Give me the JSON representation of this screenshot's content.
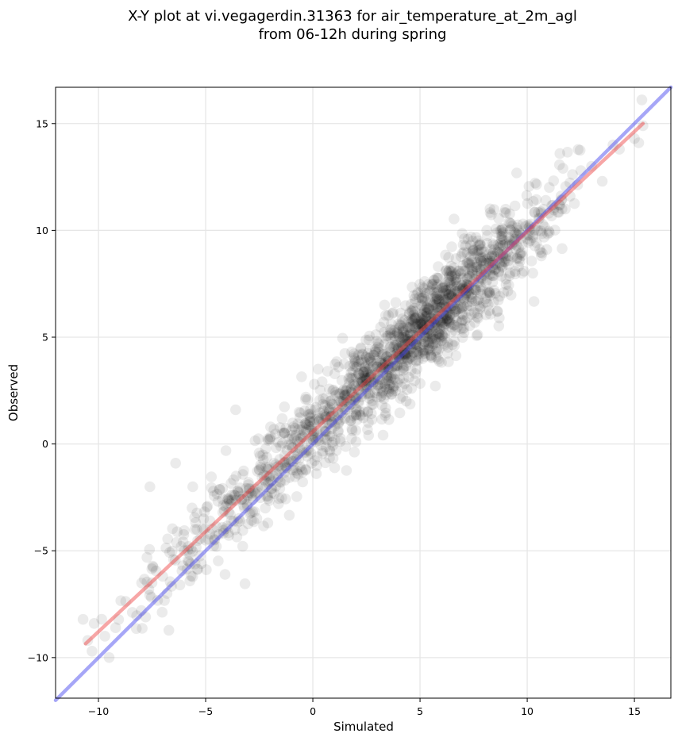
{
  "chart_data": {
    "type": "scatter",
    "title": "X-Y plot at vi.vegagerdin.31363 for air_temperature_at_2m_agl",
    "subtitle": "from 06-12h during spring",
    "xlabel": "Simulated",
    "ylabel": "Observed",
    "xlim": [
      -12,
      16.7
    ],
    "ylim": [
      -11.9,
      16.7
    ],
    "xticks": [
      -10,
      -5,
      0,
      5,
      10,
      15
    ],
    "yticks": [
      -10,
      -5,
      0,
      5,
      10,
      15
    ],
    "xtick_labels": [
      "−10",
      "−5",
      "0",
      "5",
      "10",
      "15"
    ],
    "ytick_labels": [
      "−10",
      "−5",
      "0",
      "5",
      "10",
      "15"
    ],
    "grid": true,
    "legend": "none",
    "point_color": "#000000",
    "point_opacity": 0.08,
    "sample_points": {
      "x": [
        -10.5,
        -10.3,
        -10.2,
        -9.7,
        -9.5,
        -9.2,
        -8.0,
        -7.8,
        -7.5,
        -7.0,
        -6.8,
        -6.5,
        -6.2,
        -6.0,
        -5.8,
        -5.5,
        -5.2,
        -5.0,
        -4.8,
        -4.5,
        -4.2,
        -4.0,
        -3.8,
        -3.5,
        -3.2,
        -3.0,
        -2.8,
        -2.5,
        -2.2,
        -2.0,
        -1.8,
        -1.5,
        -1.2,
        -1.0,
        -0.8,
        -0.5,
        -0.2,
        0.0,
        0.3,
        0.5,
        0.8,
        1.0,
        1.3,
        1.5,
        1.8,
        2.0,
        2.3,
        2.5,
        2.8,
        3.0,
        3.3,
        3.5,
        3.8,
        4.0,
        4.3,
        4.5,
        4.8,
        5.0,
        5.3,
        5.5,
        5.8,
        6.0,
        6.3,
        6.5,
        6.8,
        7.0,
        7.3,
        7.5,
        7.8,
        8.0,
        8.3,
        8.5,
        8.8,
        9.0,
        9.3,
        9.5,
        9.8,
        10.0,
        10.5,
        11.0,
        11.5,
        12.0,
        12.5,
        13.0,
        13.5,
        14.0,
        14.3,
        15.0,
        15.2,
        15.4,
        -7.6,
        -6.4,
        -5.6,
        -3.6,
        -1.6,
        1.2,
        2.6,
        4.6,
        6.6,
        8.6
      ],
      "y": [
        -9.2,
        -9.7,
        -8.4,
        -9.0,
        -10.0,
        -8.6,
        -7.8,
        -8.1,
        -6.5,
        -6.2,
        -7.0,
        -5.4,
        -6.6,
        -5.0,
        -4.8,
        -4.0,
        -5.6,
        -4.5,
        -3.6,
        -4.8,
        -3.2,
        -2.8,
        -3.6,
        -2.2,
        -3.0,
        -1.8,
        -2.6,
        -1.2,
        -2.0,
        -1.5,
        -0.9,
        -1.8,
        -0.3,
        -0.8,
        0.4,
        -0.3,
        0.9,
        0.2,
        1.1,
        0.6,
        1.7,
        1.3,
        2.0,
        1.6,
        2.6,
        2.1,
        3.0,
        2.6,
        3.6,
        3.1,
        4.2,
        3.6,
        4.6,
        4.1,
        5.3,
        4.8,
        5.9,
        5.2,
        6.4,
        5.9,
        7.1,
        6.4,
        7.6,
        6.9,
        8.1,
        7.3,
        8.2,
        7.6,
        8.7,
        7.9,
        9.1,
        8.4,
        9.6,
        8.8,
        10.2,
        9.3,
        10.3,
        9.6,
        10.0,
        10.8,
        11.2,
        11.6,
        12.8,
        13.0,
        12.3,
        14.0,
        13.8,
        14.3,
        14.1,
        14.9,
        -2.0,
        -0.9,
        -2.0,
        1.6,
        -2.8,
        3.6,
        0.4,
        2.6,
        4.6,
        6.2
      ]
    },
    "fit_line": {
      "color": "#ee4444",
      "x": [
        -10.6,
        15.4
      ],
      "y": [
        -9.35,
        15.0
      ]
    },
    "identity_line": {
      "color": "#4444ee",
      "x": [
        -12,
        16.7
      ],
      "y": [
        -12,
        16.7
      ]
    }
  }
}
